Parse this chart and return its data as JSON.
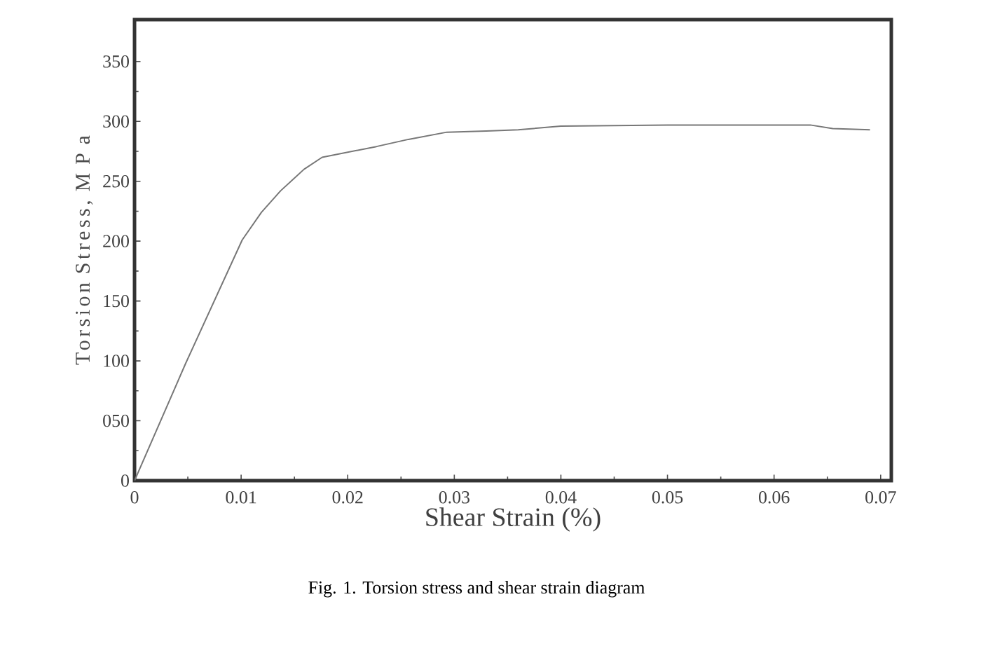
{
  "chart_data": {
    "type": "line",
    "xlabel": "Shear Strain (%)",
    "ylabel": "Torsion Stress, M P a",
    "annotations": [
      "Fig. 1.  Torsion stress and shear strain diagram"
    ],
    "x": [
      0,
      0.0048,
      0.0101,
      0.0119,
      0.0137,
      0.0159,
      0.0176,
      0.0227,
      0.0257,
      0.0293,
      0.033,
      0.036,
      0.04,
      0.05,
      0.06,
      0.0634,
      0.0655,
      0.069
    ],
    "series": [
      {
        "color": "#777777",
        "values": [
          0,
          98,
          201,
          224,
          242,
          260,
          270,
          279,
          285,
          291,
          292,
          293,
          296,
          297,
          297,
          297,
          294,
          293
        ]
      }
    ],
    "xlim": [
      0,
      0.071
    ],
    "ylim": [
      0,
      385
    ],
    "xticks": [
      0,
      0.01,
      0.02,
      0.03,
      0.04,
      0.05,
      0.06,
      0.07
    ],
    "yticks": [
      0,
      {
        "value": 50,
        "label": "050"
      },
      100,
      150,
      200,
      250,
      300,
      350
    ],
    "marker": "none",
    "line_style": "solid"
  }
}
